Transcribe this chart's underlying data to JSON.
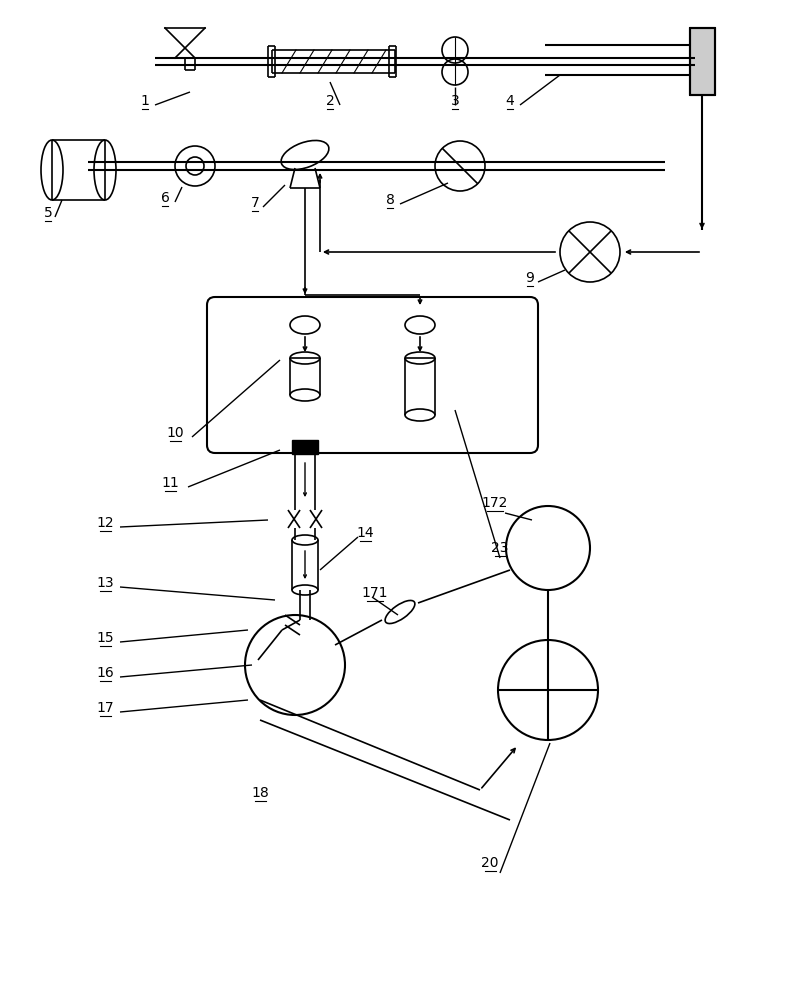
{
  "figsize": [
    8.02,
    10.0
  ],
  "dpi": 100,
  "bg_color": "white",
  "line_color": "black",
  "lw": 1.0
}
